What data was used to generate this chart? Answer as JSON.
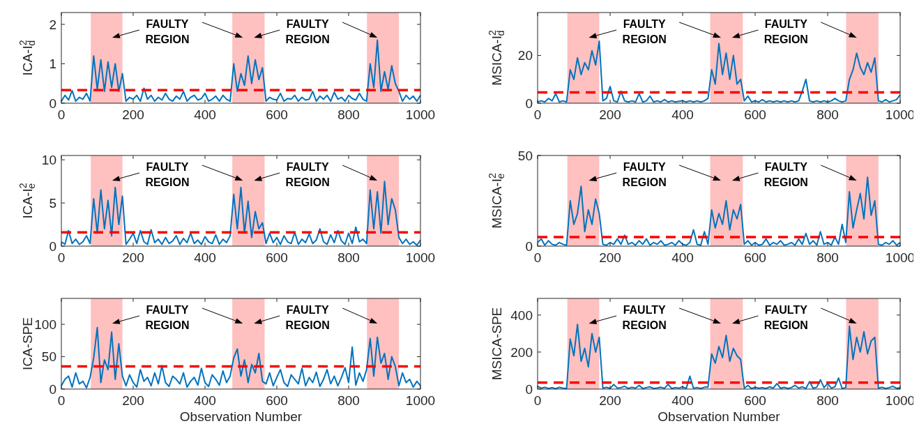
{
  "chart_data": [
    {
      "type": "line",
      "ylabel": "ICA-I$^{2}$$_{d}$",
      "xlim": [
        0,
        1000
      ],
      "xticks": [
        0,
        200,
        400,
        600,
        800,
        1000
      ],
      "ylim": [
        0,
        2.3
      ],
      "yticks": [
        0,
        1,
        2
      ],
      "grid": false,
      "line_style": "solid",
      "x": [
        0,
        10,
        20,
        30,
        40,
        50,
        60,
        70,
        80,
        90,
        100,
        110,
        120,
        130,
        140,
        150,
        160,
        170,
        180,
        190,
        200,
        210,
        220,
        230,
        240,
        250,
        260,
        270,
        280,
        290,
        300,
        310,
        320,
        330,
        340,
        350,
        360,
        370,
        380,
        390,
        400,
        410,
        420,
        430,
        440,
        450,
        460,
        470,
        480,
        490,
        500,
        510,
        520,
        530,
        540,
        550,
        560,
        570,
        580,
        590,
        600,
        610,
        620,
        630,
        640,
        650,
        660,
        670,
        680,
        690,
        700,
        710,
        720,
        730,
        740,
        750,
        760,
        770,
        780,
        790,
        800,
        810,
        820,
        830,
        840,
        850,
        860,
        870,
        880,
        890,
        900,
        910,
        920,
        930,
        940,
        950,
        960,
        970,
        980,
        990,
        1000
      ],
      "series": [
        {
          "color": "#0072bd",
          "values": [
            0.05,
            0.2,
            0.08,
            0.32,
            0.05,
            0.15,
            0.1,
            0.25,
            0.05,
            1.2,
            0.35,
            1.1,
            0.3,
            1.05,
            0.4,
            1.0,
            0.3,
            0.75,
            0.05,
            0.15,
            0.1,
            0.2,
            0.05,
            0.38,
            0.1,
            0.2,
            0.05,
            0.15,
            0.08,
            0.25,
            0.1,
            0.05,
            0.18,
            0.1,
            0.3,
            0.05,
            0.15,
            0.2,
            0.08,
            0.12,
            0.25,
            0.05,
            0.1,
            0.18,
            0.05,
            0.2,
            0.1,
            0.05,
            1.0,
            0.3,
            0.75,
            0.45,
            1.2,
            0.5,
            1.1,
            0.6,
            0.9,
            0.05,
            0.15,
            0.1,
            0.08,
            0.25,
            0.05,
            0.12,
            0.1,
            0.2,
            0.05,
            0.15,
            0.08,
            0.1,
            0.3,
            0.05,
            0.18,
            0.1,
            0.2,
            0.05,
            0.28,
            0.1,
            0.15,
            0.05,
            0.2,
            0.12,
            0.08,
            0.25,
            0.1,
            0.05,
            1.0,
            0.4,
            1.6,
            0.3,
            0.8,
            0.35,
            0.95,
            0.5,
            0.3,
            0.05,
            0.2,
            0.1,
            0.18,
            0.05,
            0.2
          ]
        }
      ],
      "bands": [
        {
          "axis": "x",
          "from": 82,
          "to": 170,
          "color": "#ffc0c0"
        },
        {
          "axis": "x",
          "from": 476,
          "to": 566,
          "color": "#ffc0c0"
        },
        {
          "axis": "x",
          "from": 851,
          "to": 940,
          "color": "#ffc0c0"
        }
      ],
      "ref_lines": [
        {
          "axis": "y",
          "value": 0.33,
          "color": "#ff0000",
          "line_style": "dashed"
        }
      ],
      "annotations": [
        "FAULTY\nREGION",
        "FAULTY\nREGION"
      ]
    },
    {
      "type": "line",
      "ylabel": "MSICA-I$^{2}$$_{d}$",
      "xlim": [
        0,
        1000
      ],
      "xticks": [
        0,
        200,
        400,
        600,
        800,
        1000
      ],
      "ylim": [
        0,
        38
      ],
      "yticks": [
        0,
        20
      ],
      "grid": false,
      "line_style": "solid",
      "x": [
        0,
        10,
        20,
        30,
        40,
        50,
        60,
        70,
        80,
        90,
        100,
        110,
        120,
        130,
        140,
        150,
        160,
        170,
        180,
        190,
        200,
        210,
        220,
        230,
        240,
        250,
        260,
        270,
        280,
        290,
        300,
        310,
        320,
        330,
        340,
        350,
        360,
        370,
        380,
        390,
        400,
        410,
        420,
        430,
        440,
        450,
        460,
        470,
        480,
        490,
        500,
        510,
        520,
        530,
        540,
        550,
        560,
        570,
        580,
        590,
        600,
        610,
        620,
        630,
        640,
        650,
        660,
        670,
        680,
        690,
        700,
        710,
        720,
        730,
        740,
        750,
        760,
        770,
        780,
        790,
        800,
        810,
        820,
        830,
        840,
        850,
        860,
        870,
        880,
        890,
        900,
        910,
        920,
        930,
        940,
        950,
        960,
        970,
        980,
        990,
        1000
      ],
      "series": [
        {
          "color": "#0072bd",
          "values": [
            0.5,
            1,
            0.5,
            2,
            1,
            4,
            0.5,
            1,
            0.5,
            14,
            10,
            19,
            12,
            17,
            14,
            22,
            16,
            26,
            1,
            2,
            7,
            1,
            0.5,
            5,
            1,
            0.5,
            1,
            0.5,
            4,
            0.5,
            1,
            3,
            0.5,
            1,
            0.5,
            1.5,
            0.5,
            1,
            0.5,
            0.8,
            1,
            0.5,
            1,
            0.5,
            1,
            0.5,
            1,
            2,
            14,
            8,
            25,
            12,
            21,
            10,
            20,
            8,
            10,
            1,
            3,
            0.5,
            1,
            0.5,
            1.5,
            0.5,
            1,
            0.5,
            1,
            0.5,
            1,
            0.5,
            1,
            0.5,
            1,
            5,
            10,
            1,
            0.5,
            1,
            0.5,
            1,
            0.5,
            1,
            2,
            1,
            0.5,
            1,
            10,
            14,
            21,
            15,
            12,
            17,
            13,
            19,
            1,
            0.5,
            1.5,
            0.5,
            1,
            1.5,
            3.5
          ]
        }
      ],
      "bands": [
        {
          "axis": "x",
          "from": 82,
          "to": 170,
          "color": "#ffc0c0"
        },
        {
          "axis": "x",
          "from": 476,
          "to": 566,
          "color": "#ffc0c0"
        },
        {
          "axis": "x",
          "from": 851,
          "to": 940,
          "color": "#ffc0c0"
        }
      ],
      "ref_lines": [
        {
          "axis": "y",
          "value": 4.5,
          "color": "#ff0000",
          "line_style": "dashed"
        }
      ],
      "annotations": [
        "FAULTY\nREGION",
        "FAULTY\nREGION"
      ]
    },
    {
      "type": "line",
      "ylabel": "ICA-I$^{2}$$_{e}$",
      "xlim": [
        0,
        1000
      ],
      "xticks": [
        0,
        200,
        400,
        600,
        800,
        1000
      ],
      "ylim": [
        0,
        10.5
      ],
      "yticks": [
        0,
        5,
        10
      ],
      "grid": false,
      "line_style": "solid",
      "x": [
        0,
        10,
        20,
        30,
        40,
        50,
        60,
        70,
        80,
        90,
        100,
        110,
        120,
        130,
        140,
        150,
        160,
        170,
        180,
        190,
        200,
        210,
        220,
        230,
        240,
        250,
        260,
        270,
        280,
        290,
        300,
        310,
        320,
        330,
        340,
        350,
        360,
        370,
        380,
        390,
        400,
        410,
        420,
        430,
        440,
        450,
        460,
        470,
        480,
        490,
        500,
        510,
        520,
        530,
        540,
        550,
        560,
        570,
        580,
        590,
        600,
        610,
        620,
        630,
        640,
        650,
        660,
        670,
        680,
        690,
        700,
        710,
        720,
        730,
        740,
        750,
        760,
        770,
        780,
        790,
        800,
        810,
        820,
        830,
        840,
        850,
        860,
        870,
        880,
        890,
        900,
        910,
        920,
        930,
        940,
        950,
        960,
        970,
        980,
        990,
        1000
      ],
      "series": [
        {
          "color": "#0072bd",
          "values": [
            0.5,
            0.2,
            1.8,
            0.3,
            0.8,
            0.2,
            0.5,
            1.2,
            0.3,
            5.5,
            1.5,
            6.5,
            2,
            5.3,
            1.2,
            6.8,
            2.5,
            5.8,
            0.2,
            0.8,
            1.5,
            0.3,
            1.8,
            0.5,
            0.2,
            1.9,
            0.4,
            0.8,
            0.2,
            1,
            0.3,
            0.6,
            1.2,
            0.2,
            0.9,
            0.4,
            1.5,
            0.3,
            0.7,
            0.2,
            1.1,
            0.5,
            0.3,
            1.3,
            0.2,
            0.8,
            0.4,
            1.2,
            6,
            2,
            6.8,
            1.5,
            5.2,
            1,
            4,
            2,
            2.7,
            0.3,
            1.5,
            0.4,
            1,
            0.2,
            1.2,
            0.5,
            0.3,
            1.6,
            0.2,
            0.8,
            0.4,
            1.4,
            0.3,
            0.7,
            2,
            0.5,
            0.2,
            1.3,
            0.4,
            1.8,
            0.6,
            0.2,
            1.5,
            0.3,
            2.2,
            0.5,
            0.8,
            0.3,
            6.5,
            2,
            6.3,
            1.5,
            7.5,
            2.5,
            5.5,
            4.2,
            1,
            0.3,
            0.8,
            0.2,
            0.5,
            0.1,
            0.7
          ]
        }
      ],
      "bands": [
        {
          "axis": "x",
          "from": 82,
          "to": 170,
          "color": "#ffc0c0"
        },
        {
          "axis": "x",
          "from": 476,
          "to": 566,
          "color": "#ffc0c0"
        },
        {
          "axis": "x",
          "from": 851,
          "to": 940,
          "color": "#ffc0c0"
        }
      ],
      "ref_lines": [
        {
          "axis": "y",
          "value": 1.6,
          "color": "#ff0000",
          "line_style": "dashed"
        }
      ],
      "annotations": [
        "FAULTY\nREGION",
        "FAULTY\nREGION"
      ]
    },
    {
      "type": "line",
      "ylabel": "MSICA-I$^{2}$$_{e}$",
      "xlim": [
        0,
        1000
      ],
      "xticks": [
        0,
        200,
        400,
        600,
        800,
        1000
      ],
      "ylim": [
        0,
        50
      ],
      "yticks": [
        0,
        50
      ],
      "grid": false,
      "line_style": "solid",
      "x": [
        0,
        10,
        20,
        30,
        40,
        50,
        60,
        70,
        80,
        90,
        100,
        110,
        120,
        130,
        140,
        150,
        160,
        170,
        180,
        190,
        200,
        210,
        220,
        230,
        240,
        250,
        260,
        270,
        280,
        290,
        300,
        310,
        320,
        330,
        340,
        350,
        360,
        370,
        380,
        390,
        400,
        410,
        420,
        430,
        440,
        450,
        460,
        470,
        480,
        490,
        500,
        510,
        520,
        530,
        540,
        550,
        560,
        570,
        580,
        590,
        600,
        610,
        620,
        630,
        640,
        650,
        660,
        670,
        680,
        690,
        700,
        710,
        720,
        730,
        740,
        750,
        760,
        770,
        780,
        790,
        800,
        810,
        820,
        830,
        840,
        850,
        860,
        870,
        880,
        890,
        900,
        910,
        920,
        930,
        940,
        950,
        960,
        970,
        980,
        990,
        1000
      ],
      "series": [
        {
          "color": "#0072bd",
          "values": [
            2,
            4,
            0.5,
            3,
            1,
            0.5,
            2,
            1,
            0.5,
            25,
            12,
            18,
            33,
            8,
            20,
            12,
            26,
            18,
            1,
            0.5,
            2,
            1,
            4,
            1,
            6,
            1,
            2,
            0.5,
            3,
            1,
            4,
            0.5,
            2,
            1,
            3,
            0.5,
            1,
            2,
            0.5,
            3,
            1,
            0.5,
            2,
            9,
            1,
            0.5,
            8,
            1,
            20,
            10,
            18,
            12,
            25,
            9,
            20,
            15,
            23,
            1,
            3,
            0.5,
            2,
            0.5,
            1,
            4,
            0.5,
            2,
            1,
            3,
            0.5,
            1,
            2,
            0.5,
            4,
            1,
            7,
            1,
            3,
            0.5,
            8,
            1,
            2,
            0.5,
            5,
            1,
            12,
            2,
            30,
            10,
            20,
            29,
            15,
            38,
            17,
            25,
            1,
            0.5,
            2,
            1,
            3,
            0.5,
            2
          ]
        }
      ],
      "bands": [
        {
          "axis": "x",
          "from": 82,
          "to": 170,
          "color": "#ffc0c0"
        },
        {
          "axis": "x",
          "from": 476,
          "to": 566,
          "color": "#ffc0c0"
        },
        {
          "axis": "x",
          "from": 851,
          "to": 940,
          "color": "#ffc0c0"
        }
      ],
      "ref_lines": [
        {
          "axis": "y",
          "value": 5,
          "color": "#ff0000",
          "line_style": "dashed"
        }
      ],
      "annotations": [
        "FAULTY\nREGION",
        "FAULTY\nREGION"
      ]
    },
    {
      "type": "line",
      "xlabel": "Observation Number",
      "ylabel": "ICA-SPE",
      "xlim": [
        0,
        1000
      ],
      "xticks": [
        0,
        200,
        400,
        600,
        800,
        1000
      ],
      "ylim": [
        0,
        140
      ],
      "yticks": [
        0,
        50,
        100
      ],
      "grid": false,
      "line_style": "solid",
      "x": [
        0,
        10,
        20,
        30,
        40,
        50,
        60,
        70,
        80,
        90,
        100,
        110,
        120,
        130,
        140,
        150,
        160,
        170,
        180,
        190,
        200,
        210,
        220,
        230,
        240,
        250,
        260,
        270,
        280,
        290,
        300,
        310,
        320,
        330,
        340,
        350,
        360,
        370,
        380,
        390,
        400,
        410,
        420,
        430,
        440,
        450,
        460,
        470,
        480,
        490,
        500,
        510,
        520,
        530,
        540,
        550,
        560,
        570,
        580,
        590,
        600,
        610,
        620,
        630,
        640,
        650,
        660,
        670,
        680,
        690,
        700,
        710,
        720,
        730,
        740,
        750,
        760,
        770,
        780,
        790,
        800,
        810,
        820,
        830,
        840,
        850,
        860,
        870,
        880,
        890,
        900,
        910,
        920,
        930,
        940,
        950,
        960,
        970,
        980,
        990,
        1000
      ],
      "series": [
        {
          "color": "#0072bd",
          "values": [
            5,
            15,
            20,
            3,
            25,
            8,
            12,
            2,
            18,
            48,
            95,
            10,
            45,
            30,
            88,
            15,
            70,
            20,
            5,
            22,
            10,
            3,
            30,
            12,
            18,
            5,
            25,
            8,
            36,
            10,
            4,
            20,
            15,
            8,
            25,
            3,
            12,
            18,
            6,
            32,
            10,
            4,
            22,
            15,
            6,
            28,
            10,
            20,
            48,
            62,
            20,
            45,
            10,
            38,
            25,
            55,
            12,
            8,
            25,
            5,
            18,
            30,
            10,
            4,
            22,
            15,
            8,
            32,
            5,
            18,
            10,
            26,
            4,
            15,
            30,
            8,
            20,
            5,
            18,
            33,
            10,
            65,
            6,
            25,
            12,
            30,
            78,
            20,
            80,
            40,
            55,
            15,
            50,
            35,
            5,
            25,
            10,
            15,
            3,
            12,
            5
          ]
        }
      ],
      "bands": [
        {
          "axis": "x",
          "from": 82,
          "to": 170,
          "color": "#ffc0c0"
        },
        {
          "axis": "x",
          "from": 476,
          "to": 566,
          "color": "#ffc0c0"
        },
        {
          "axis": "x",
          "from": 851,
          "to": 940,
          "color": "#ffc0c0"
        }
      ],
      "ref_lines": [
        {
          "axis": "y",
          "value": 35,
          "color": "#ff0000",
          "line_style": "dashed"
        }
      ],
      "annotations": [
        "FAULTY\nREGION",
        "FAULTY\nREGION"
      ]
    },
    {
      "type": "line",
      "xlabel": "Observation Number",
      "ylabel": "MSICA-SPE",
      "xlim": [
        0,
        1000
      ],
      "xticks": [
        0,
        200,
        400,
        600,
        800,
        1000
      ],
      "ylim": [
        0,
        490
      ],
      "yticks": [
        0,
        200,
        400
      ],
      "grid": false,
      "line_style": "solid",
      "x": [
        0,
        10,
        20,
        30,
        40,
        50,
        60,
        70,
        80,
        90,
        100,
        110,
        120,
        130,
        140,
        150,
        160,
        170,
        180,
        190,
        200,
        210,
        220,
        230,
        240,
        250,
        260,
        270,
        280,
        290,
        300,
        310,
        320,
        330,
        340,
        350,
        360,
        370,
        380,
        390,
        400,
        410,
        420,
        430,
        440,
        450,
        460,
        470,
        480,
        490,
        500,
        510,
        520,
        530,
        540,
        550,
        560,
        570,
        580,
        590,
        600,
        610,
        620,
        630,
        640,
        650,
        660,
        670,
        680,
        690,
        700,
        710,
        720,
        730,
        740,
        750,
        760,
        770,
        780,
        790,
        800,
        810,
        820,
        830,
        840,
        850,
        860,
        870,
        880,
        890,
        900,
        910,
        920,
        930,
        940,
        950,
        960,
        970,
        980,
        990,
        1000
      ],
      "series": [
        {
          "color": "#0072bd",
          "values": [
            15,
            5,
            10,
            3,
            8,
            2,
            10,
            5,
            3,
            270,
            180,
            350,
            150,
            220,
            120,
            300,
            200,
            280,
            5,
            10,
            3,
            25,
            5,
            8,
            15,
            3,
            10,
            5,
            20,
            3,
            8,
            12,
            3,
            6,
            10,
            4,
            25,
            3,
            8,
            5,
            12,
            3,
            70,
            5,
            8,
            3,
            10,
            10,
            190,
            140,
            230,
            170,
            290,
            150,
            220,
            180,
            160,
            5,
            20,
            3,
            10,
            5,
            8,
            3,
            12,
            5,
            30,
            4,
            10,
            3,
            8,
            20,
            5,
            12,
            3,
            40,
            5,
            10,
            50,
            8,
            30,
            5,
            12,
            60,
            3,
            8,
            340,
            160,
            280,
            200,
            310,
            190,
            260,
            280,
            5,
            10,
            3,
            8,
            15,
            4,
            8
          ]
        }
      ],
      "bands": [
        {
          "axis": "x",
          "from": 82,
          "to": 170,
          "color": "#ffc0c0"
        },
        {
          "axis": "x",
          "from": 476,
          "to": 566,
          "color": "#ffc0c0"
        },
        {
          "axis": "x",
          "from": 851,
          "to": 940,
          "color": "#ffc0c0"
        }
      ],
      "ref_lines": [
        {
          "axis": "y",
          "value": 35,
          "color": "#ff0000",
          "line_style": "dashed"
        }
      ],
      "annotations": [
        "FAULTY\nREGION",
        "FAULTY\nREGION"
      ]
    }
  ]
}
